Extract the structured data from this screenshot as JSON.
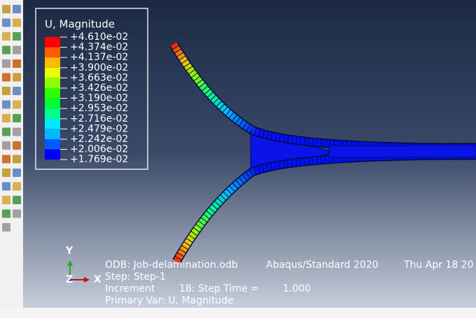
{
  "legend": {
    "title": "U, Magnitude",
    "labels": [
      "+4.610e-02",
      "+4.374e-02",
      "+4.137e-02",
      "+3.900e-02",
      "+3.663e-02",
      "+3.426e-02",
      "+3.190e-02",
      "+2.953e-02",
      "+2.716e-02",
      "+2.479e-02",
      "+2.242e-02",
      "+2.006e-02",
      "+1.769e-02"
    ],
    "colors": [
      "#ff0000",
      "#ff5c00",
      "#ffb900",
      "#e8ff00",
      "#8bff00",
      "#2eff00",
      "#00ff2e",
      "#00ff8b",
      "#00e8ff",
      "#00b9ff",
      "#005cff",
      "#0000ff"
    ]
  },
  "triad": {
    "y": "Y",
    "x": "X",
    "z": "Z"
  },
  "info": {
    "odb": "ODB: Job-delamination.odb",
    "solver": "Abaqus/Standard 2020",
    "date": "Thu Apr 18 20",
    "step": "Step: Step-1",
    "increment_label": "Increment",
    "increment": "18: Step Time =",
    "time": "1.000",
    "primary_var": "Primary Var: U, Magnitude"
  }
}
